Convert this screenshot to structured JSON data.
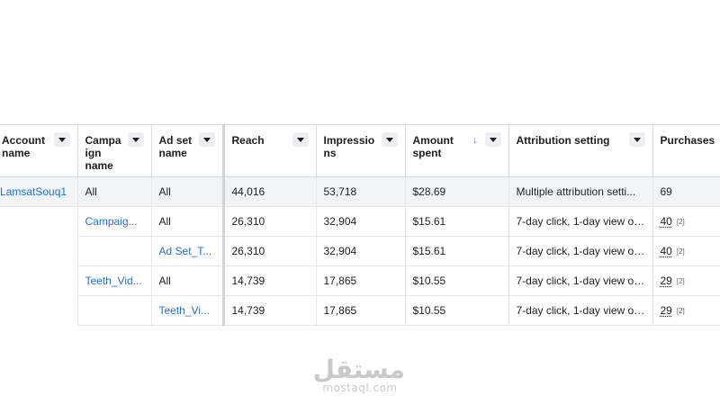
{
  "table": {
    "headers": [
      {
        "label": "Account name"
      },
      {
        "label": "Campa ign name"
      },
      {
        "label": "Ad set name"
      },
      {
        "label": "Reach"
      },
      {
        "label": "Impressio ns"
      },
      {
        "label": "Amount spent",
        "sort": "↓"
      },
      {
        "label": "Attribution setting"
      },
      {
        "label": "Purchases"
      }
    ],
    "rows": [
      {
        "account": "LamsatSouq1",
        "campaign": "All",
        "adset": "All",
        "reach": "44,016",
        "impressions": "53,718",
        "amount": "$28.69",
        "attribution": "Multiple attribution setti...",
        "purchases": "69",
        "note": ""
      },
      {
        "account": "",
        "campaign": "Campaig...",
        "adset": "All",
        "reach": "26,310",
        "impressions": "32,904",
        "amount": "$15.61",
        "attribution": "7-day click, 1-day view or...",
        "purchases": "40",
        "note": "[2]"
      },
      {
        "account": "",
        "campaign": "",
        "adset": "Ad Set_T...",
        "reach": "26,310",
        "impressions": "32,904",
        "amount": "$15.61",
        "attribution": "7-day click, 1-day view or...",
        "purchases": "40",
        "note": "[2]"
      },
      {
        "account": "",
        "campaign": "Teeth_Vid...",
        "adset": "All",
        "reach": "14,739",
        "impressions": "17,865",
        "amount": "$10.55",
        "attribution": "7-day click, 1-day view or...",
        "purchases": "29",
        "note": "[2]"
      },
      {
        "account": "",
        "campaign": "",
        "adset": "Teeth_Vi...",
        "reach": "14,739",
        "impressions": "17,865",
        "amount": "$10.55",
        "attribution": "7-day click, 1-day view or...",
        "purchases": "29",
        "note": "[2]"
      }
    ]
  },
  "watermark": {
    "arabic": "مستقل",
    "latin": "mostaql.com"
  }
}
